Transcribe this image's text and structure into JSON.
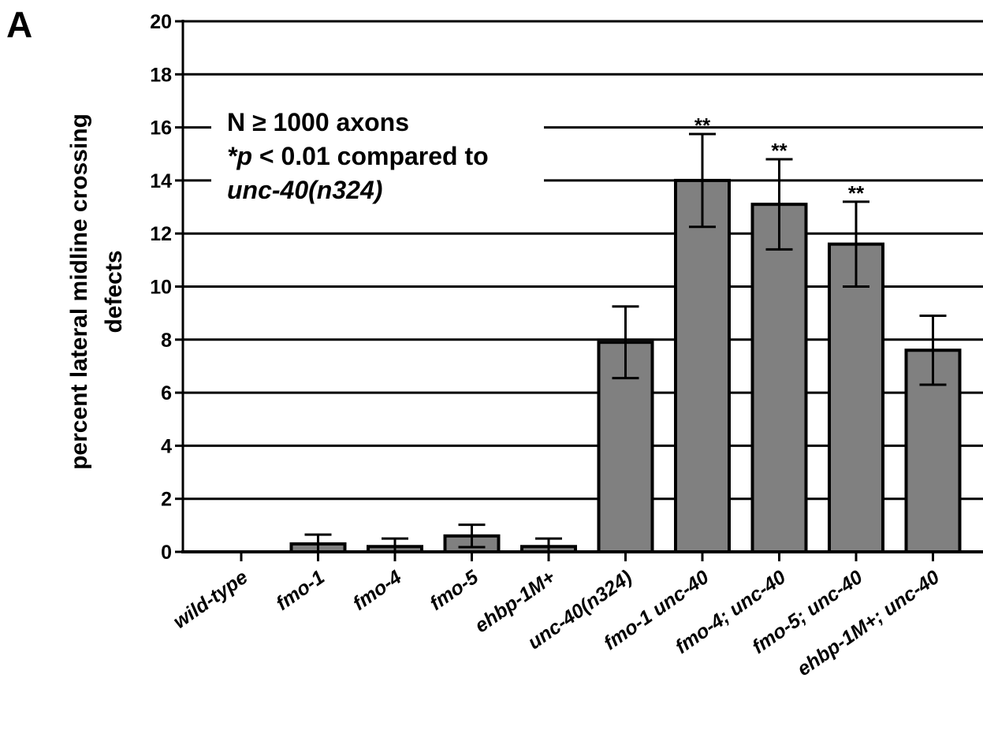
{
  "panel_label": "A",
  "annotation": {
    "line1": "N ≥ 1000 axons",
    "line2_prefix": "*",
    "line2_p": "p",
    "line2_rest": " < 0.01 compared to",
    "line3": "unc-40(n324)"
  },
  "colors": {
    "bar_fill": "#808080",
    "bar_stroke": "#000000",
    "grid": "#000000"
  },
  "chart_data": {
    "type": "bar",
    "title": "",
    "xlabel": "",
    "ylabel_lines": [
      "percent lateral midline crossing",
      "defects"
    ],
    "ylim": [
      0,
      20
    ],
    "yticks": [
      0,
      2,
      4,
      6,
      8,
      10,
      12,
      14,
      16,
      18,
      20
    ],
    "grid": true,
    "categories": [
      "wild-type",
      "fmo-1",
      "fmo-4",
      "fmo-5",
      "ehbp-1M+",
      "unc-40(n324)",
      "fmo-1 unc-40",
      "fmo-4; unc-40",
      "fmo-5; unc-40",
      "ehbp-1M+; unc-40"
    ],
    "values": [
      0,
      0.3,
      0.2,
      0.6,
      0.2,
      7.9,
      14.0,
      13.1,
      11.6,
      7.6
    ],
    "errors": [
      0,
      0.35,
      0.3,
      0.42,
      0.3,
      1.35,
      1.75,
      1.7,
      1.6,
      1.3
    ],
    "significance": [
      "",
      "",
      "",
      "",
      "",
      "",
      "**",
      "**",
      "**",
      ""
    ]
  }
}
